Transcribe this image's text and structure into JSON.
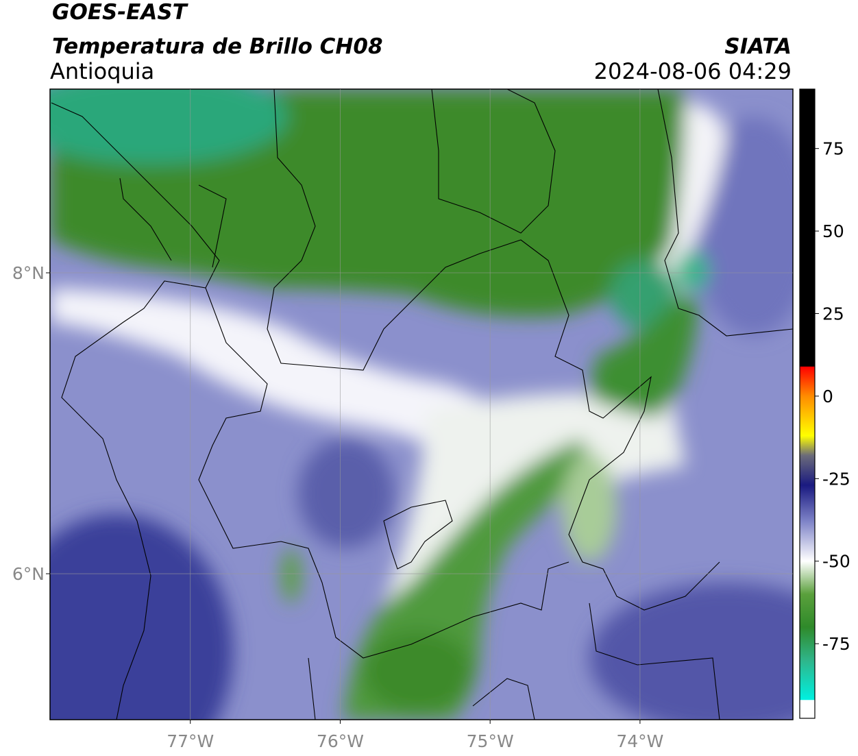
{
  "header": {
    "satellite": "GOES-EAST",
    "product": "Temperatura de Brillo CH08",
    "region": "Antioquia",
    "agency": "SIATA",
    "timestamp": "2024-08-06 04:29"
  },
  "map": {
    "xlim": [
      -77.936,
      -72.98
    ],
    "ylim": [
      5.03,
      9.221
    ],
    "xticks": [
      {
        "value": -77,
        "label": "77°W"
      },
      {
        "value": -76,
        "label": "76°W"
      },
      {
        "value": -75,
        "label": "75°W"
      },
      {
        "value": -74,
        "label": "74°W"
      }
    ],
    "yticks": [
      {
        "value": 8,
        "label": "8°N"
      },
      {
        "value": 6,
        "label": "6°N"
      }
    ],
    "grid": true
  },
  "colorbar": {
    "lim": [
      -97.6,
      93
    ],
    "ticks": [
      75,
      50,
      25,
      0,
      -25,
      -50,
      -75
    ],
    "stops": [
      {
        "value": 93,
        "color": "#000000"
      },
      {
        "value": 9,
        "color": "#000000"
      },
      {
        "value": 8.9,
        "color": "#ff0000"
      },
      {
        "value": 0,
        "color": "#ff8c00"
      },
      {
        "value": -12,
        "color": "#ffff00"
      },
      {
        "value": -18,
        "color": "#6b6b7a"
      },
      {
        "value": -27,
        "color": "#1a1a80"
      },
      {
        "value": -38,
        "color": "#7f84c8"
      },
      {
        "value": -50,
        "color": "#ffffff"
      },
      {
        "value": -60,
        "color": "#5aa03c"
      },
      {
        "value": -70,
        "color": "#2f8a2a"
      },
      {
        "value": -80,
        "color": "#2fb58a"
      },
      {
        "value": -92,
        "color": "#00f0e0"
      },
      {
        "value": -92.1,
        "color": "#ffffff"
      },
      {
        "value": -97.6,
        "color": "#ffffff"
      }
    ]
  }
}
